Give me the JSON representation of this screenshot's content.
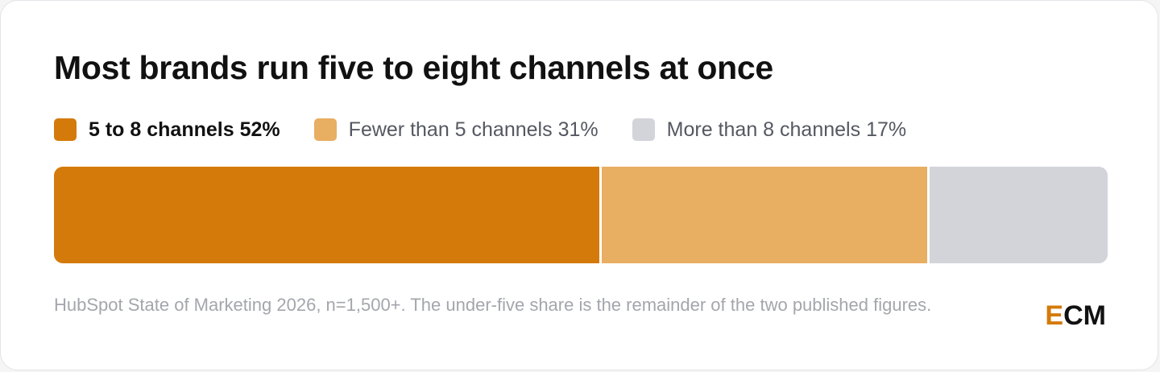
{
  "title": "Most brands run five to eight channels at once",
  "legend": [
    {
      "label": "5 to 8 channels",
      "value_text": "52%"
    },
    {
      "label": "Fewer than 5 channels",
      "value_text": "31%"
    },
    {
      "label": "More than 8 channels",
      "value_text": "17%"
    }
  ],
  "footnote": "HubSpot State of Marketing 2026, n=1,500+. The under-five share is the remainder of the two published figures.",
  "brand": {
    "first_letter": "E",
    "rest": "CM"
  },
  "colors": {
    "five_to_eight": "#d47a0a",
    "fewer_than_five": "#e8ae62",
    "more_than_eight": "#d2d4da",
    "brand_accent": "#d47a0a"
  },
  "chart_data": {
    "type": "bar",
    "orientation": "horizontal-stacked",
    "title": "Most brands run five to eight channels at once",
    "unit": "%",
    "series": [
      {
        "name": "5 to 8 channels",
        "value": 52,
        "color": "#d47a0a"
      },
      {
        "name": "Fewer than 5 channels",
        "value": 31,
        "color": "#e8ae62"
      },
      {
        "name": "More than 8 channels",
        "value": 17,
        "color": "#d2d4da"
      }
    ],
    "total": 100,
    "legend_position": "top-left",
    "grid": false
  }
}
